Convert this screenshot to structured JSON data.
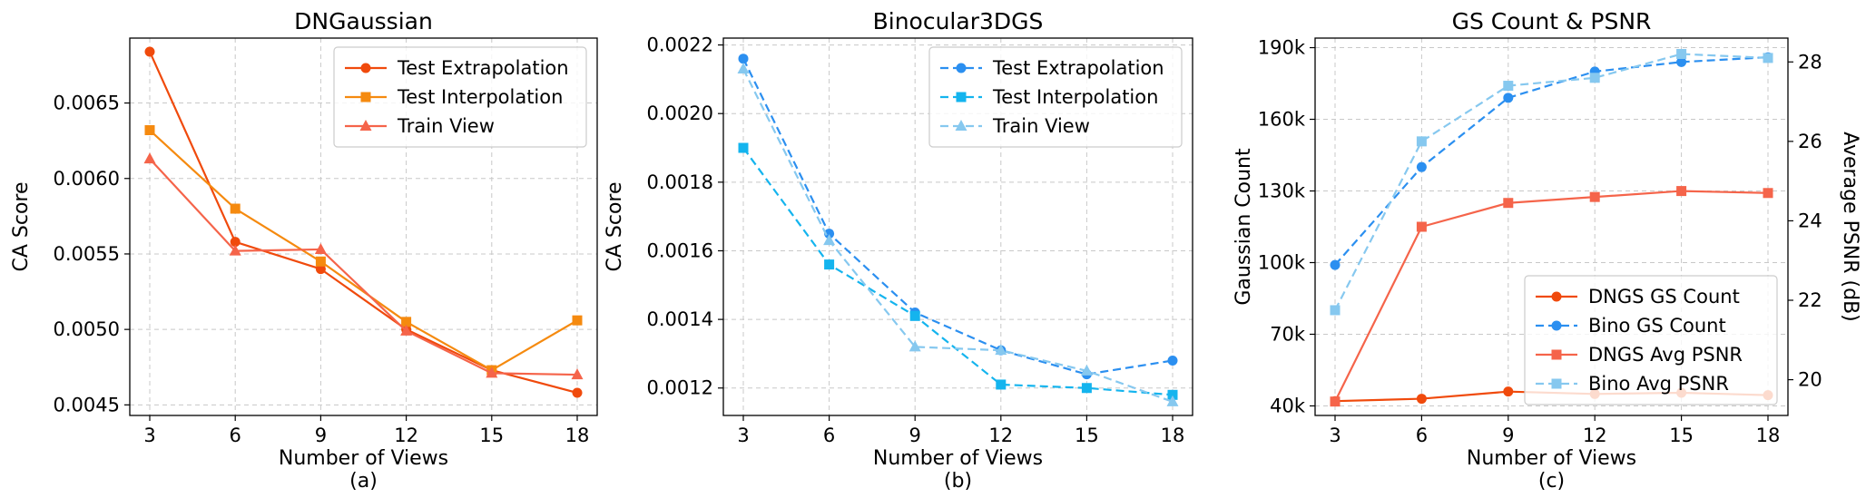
{
  "chart_data": [
    {
      "type": "line",
      "title": "DNGaussian",
      "xlabel": "Number of Views",
      "ylabel": "CA Score",
      "caption": "(a)",
      "x": [
        3,
        6,
        9,
        12,
        15,
        18
      ],
      "xticks": [
        "3",
        "6",
        "9",
        "12",
        "15",
        "18"
      ],
      "ylim": [
        0.00443,
        0.00693
      ],
      "yticks": [
        0.0045,
        0.005,
        0.0055,
        0.006,
        0.0065
      ],
      "ytick_labels": [
        "0.0045",
        "0.0050",
        "0.0055",
        "0.0060",
        "0.0065"
      ],
      "grid": true,
      "legend": "top-right",
      "series": [
        {
          "name": "Test Extrapolation",
          "values": [
            0.00684,
            0.00558,
            0.0054,
            0.005,
            0.00473,
            0.00458
          ],
          "color": "#f04a0c",
          "marker": "circle",
          "dash": "solid"
        },
        {
          "name": "Test Interpolation",
          "values": [
            0.00632,
            0.0058,
            0.00545,
            0.00505,
            0.00473,
            0.00506
          ],
          "color": "#f58a0f",
          "marker": "square",
          "dash": "solid"
        },
        {
          "name": "Train View",
          "values": [
            0.00613,
            0.00552,
            0.00553,
            0.00499,
            0.00471,
            0.0047
          ],
          "color": "#f5644a",
          "marker": "triangle",
          "dash": "solid"
        }
      ]
    },
    {
      "type": "line",
      "title": "Binocular3DGS",
      "xlabel": "Number of Views",
      "ylabel": "CA Score",
      "caption": "(b)",
      "x": [
        3,
        6,
        9,
        12,
        15,
        18
      ],
      "xticks": [
        "3",
        "6",
        "9",
        "12",
        "15",
        "18"
      ],
      "ylim": [
        0.00112,
        0.00222
      ],
      "yticks": [
        0.0012,
        0.0014,
        0.0016,
        0.0018,
        0.002,
        0.0022
      ],
      "ytick_labels": [
        "0.0012",
        "0.0014",
        "0.0016",
        "0.0018",
        "0.0020",
        "0.0022"
      ],
      "grid": true,
      "legend": "top-right",
      "series": [
        {
          "name": "Test Extrapolation",
          "values": [
            0.00216,
            0.00165,
            0.00142,
            0.00131,
            0.00124,
            0.00128
          ],
          "color": "#2b8ff0",
          "marker": "circle",
          "dash": "dashed"
        },
        {
          "name": "Test Interpolation",
          "values": [
            0.0019,
            0.00156,
            0.00141,
            0.00121,
            0.0012,
            0.00118
          ],
          "color": "#14b4ee",
          "marker": "square",
          "dash": "dashed"
        },
        {
          "name": "Train View",
          "values": [
            0.00213,
            0.00163,
            0.00132,
            0.00131,
            0.00125,
            0.00116
          ],
          "color": "#86c8ef",
          "marker": "triangle",
          "dash": "dashed"
        }
      ]
    },
    {
      "type": "line",
      "title": "GS Count & PSNR",
      "xlabel": "Number of Views",
      "ylabel": "Gaussian Count",
      "ylabel_right": "Average PSNR (dB)",
      "caption": "(c)",
      "x": [
        3,
        6,
        9,
        12,
        15,
        18
      ],
      "xticks": [
        "3",
        "6",
        "9",
        "12",
        "15",
        "18"
      ],
      "ylim": [
        36000,
        194000
      ],
      "yticks": [
        40000,
        70000,
        100000,
        130000,
        160000,
        190000
      ],
      "ytick_labels": [
        "40k",
        "70k",
        "100k",
        "130k",
        "160k",
        "190k"
      ],
      "ylim_right": [
        19.1,
        28.6
      ],
      "yticks_right": [
        20,
        22,
        24,
        26,
        28
      ],
      "ytick_labels_right": [
        "20",
        "22",
        "24",
        "26",
        "28"
      ],
      "grid": true,
      "legend": "bottom-right",
      "series": [
        {
          "name": "DNGS GS Count",
          "values": [
            42000,
            43000,
            46000,
            45000,
            45500,
            44500
          ],
          "axis": "left",
          "color": "#f04a0c",
          "marker": "circle",
          "dash": "solid"
        },
        {
          "name": "Bino GS Count",
          "values": [
            99000,
            140000,
            169000,
            180000,
            184000,
            186000
          ],
          "axis": "left",
          "color": "#2b8ff0",
          "marker": "circle",
          "dash": "dashed"
        },
        {
          "name": "DNGS Avg PSNR",
          "values": [
            19.45,
            23.85,
            24.45,
            24.6,
            24.75,
            24.7
          ],
          "axis": "right",
          "color": "#f5644a",
          "marker": "square",
          "dash": "solid"
        },
        {
          "name": "Bino Avg PSNR",
          "values": [
            21.75,
            26,
            27.4,
            27.6,
            28.2,
            28.1
          ],
          "axis": "right",
          "color": "#86c8ef",
          "marker": "square",
          "dash": "dashed"
        }
      ]
    }
  ]
}
